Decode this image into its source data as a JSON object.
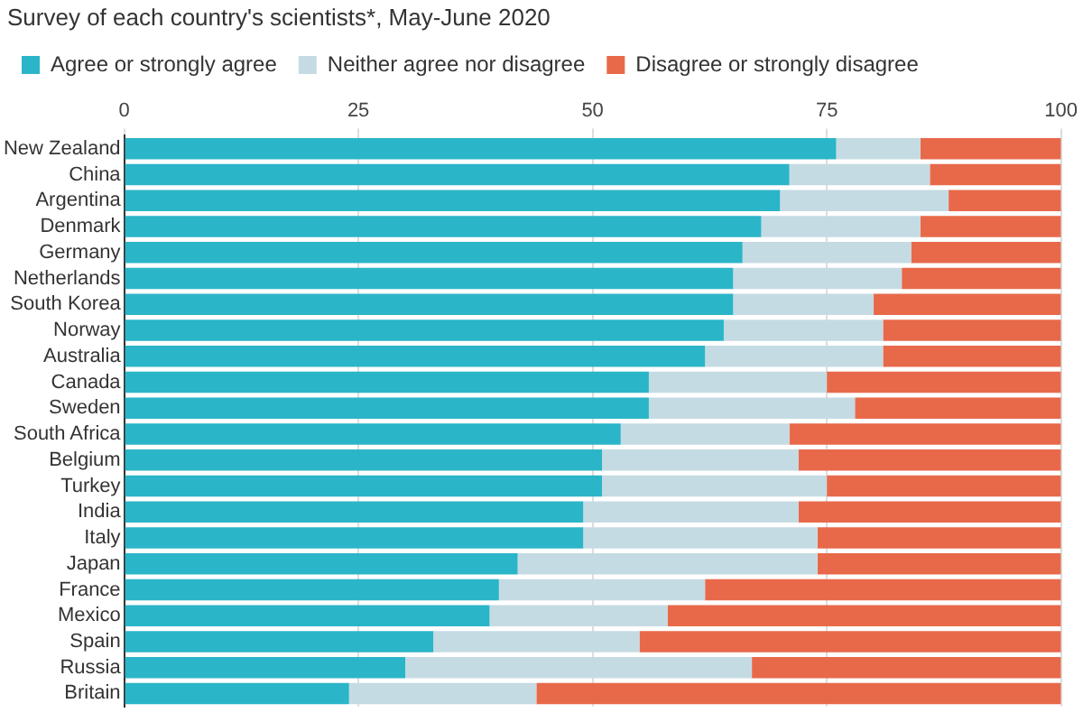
{
  "chart_data": {
    "type": "bar",
    "orientation": "horizontal",
    "stacked": true,
    "subtitle": "Survey of each country's scientists*, May-June 2020",
    "categories": [
      "New Zealand",
      "China",
      "Argentina",
      "Denmark",
      "Germany",
      "Netherlands",
      "South Korea",
      "Norway",
      "Australia",
      "Canada",
      "Sweden",
      "South Africa",
      "Belgium",
      "Turkey",
      "India",
      "Italy",
      "Japan",
      "France",
      "Mexico",
      "Spain",
      "Russia",
      "Britain"
    ],
    "series": [
      {
        "name": "Agree or strongly agree",
        "color": "#2bb5c8",
        "values": [
          76,
          71,
          70,
          68,
          66,
          65,
          65,
          64,
          62,
          56,
          56,
          53,
          51,
          51,
          49,
          49,
          42,
          40,
          39,
          33,
          30,
          24
        ]
      },
      {
        "name": "Neither agree nor disagree",
        "color": "#c5dbe3",
        "values": [
          9,
          15,
          18,
          17,
          18,
          18,
          15,
          17,
          19,
          19,
          22,
          18,
          21,
          24,
          23,
          25,
          32,
          22,
          19,
          22,
          37,
          20
        ]
      },
      {
        "name": "Disagree or strongly disagree",
        "color": "#e8694a",
        "values": [
          15,
          14,
          12,
          15,
          16,
          17,
          20,
          19,
          19,
          25,
          22,
          29,
          28,
          25,
          28,
          26,
          26,
          38,
          42,
          45,
          33,
          56
        ]
      }
    ],
    "xlim": [
      0,
      100
    ],
    "xticks": [
      0,
      25,
      50,
      75,
      100
    ],
    "grid": "x",
    "legend": "top left"
  }
}
